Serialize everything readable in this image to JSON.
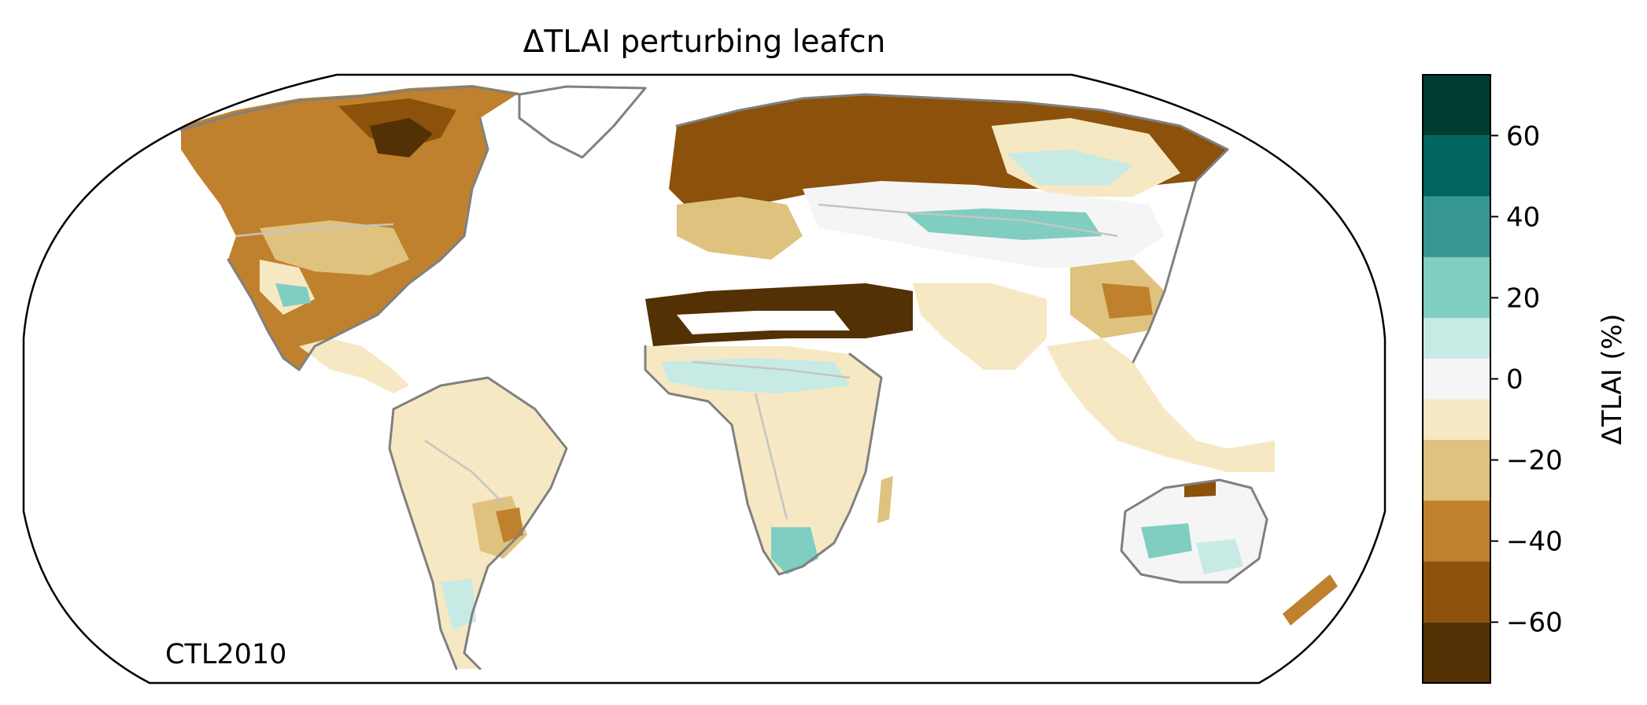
{
  "title": "ΔTLAI perturbing leafcn",
  "panel_label": "CTL2010",
  "colorbar": {
    "label": "ΔTLAI (%)",
    "min": -75,
    "max": 75,
    "boundaries": [
      -75,
      -60,
      -45,
      -30,
      -15,
      -5,
      5,
      15,
      30,
      45,
      60,
      75
    ],
    "colors": [
      "#543005",
      "#8c510a",
      "#bf812d",
      "#dfc27d",
      "#f6e8c3",
      "#f5f5f5",
      "#c7eae5",
      "#80cdc1",
      "#35978f",
      "#01665e",
      "#003c30"
    ],
    "ticks": [
      -60,
      -40,
      -20,
      0,
      20,
      40,
      60
    ],
    "tick_labels": [
      "−60",
      "−40",
      "−20",
      "0",
      "20",
      "40",
      "60"
    ]
  },
  "map": {
    "projection": "Robinson",
    "colors": {
      "deep_brown": "#543005",
      "dark_brown": "#8c510a",
      "mid_brown": "#bf812d",
      "tan": "#dfc27d",
      "light_tan": "#f6e8c3",
      "neutral": "#f5f5f5",
      "pale_teal": "#c7eae5",
      "teal": "#80cdc1",
      "coastline": "#808080",
      "borders": "#c4c4c4"
    }
  }
}
